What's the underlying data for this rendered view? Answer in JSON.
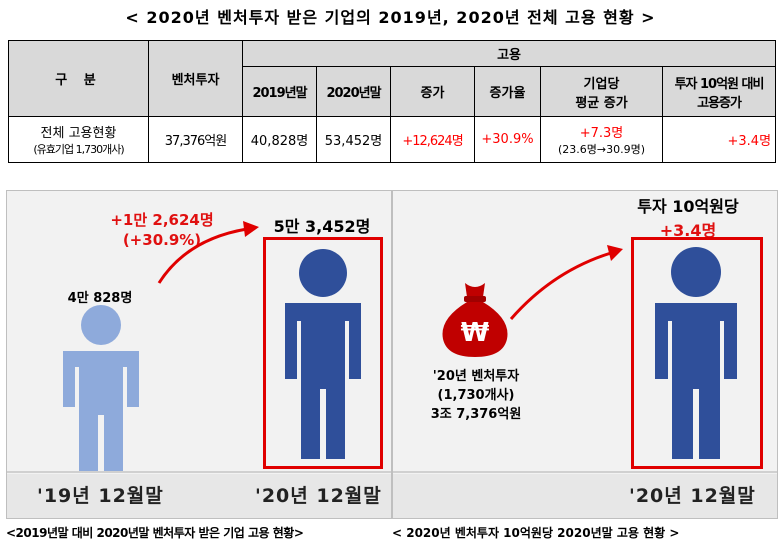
{
  "title": "< 2020년 벤처투자 받은 기업의 2019년, 2020년 전체 고용 현황 >",
  "table": {
    "h_gubun": "구  분",
    "h_invest": "벤처투자",
    "h_employment": "고용",
    "h_2019": "2019년말",
    "h_2020": "2020년말",
    "h_increase": "증가",
    "h_rate": "증가율",
    "h_avg_line1": "기업당",
    "h_avg_line2": "평균 증가",
    "h_per_line1": "투자 10억원 대비",
    "h_per_line2": "고용증가",
    "row_label_line1": "전체 고용현황",
    "row_label_line2": "(유효기업 1,730개사)",
    "invest": "37,376억원",
    "emp2019": "40,828명",
    "emp2020": "53,452명",
    "increase": "+12,624명",
    "rate": "+30.9%",
    "avg_line1": "+7.3명",
    "avg_line2": "(23.6명→30.9명)",
    "per": "+3.4명"
  },
  "left_panel": {
    "increase_line1": "+1만 2,624명",
    "increase_line2": "(+30.9%)",
    "count_2019": "4만 828명",
    "count_2020": "5만 3,452명",
    "year_2019": "'19년 12월말",
    "year_2020": "'20년 12월말",
    "caption": "<2019년말 대비 2020년말 벤처투자 받은 기업 고용 현황>"
  },
  "right_panel": {
    "per_title": "투자 10억원당",
    "per_value": "+3.4명",
    "invest_line1": "'20년 벤처투자",
    "invest_line2": "(1,730개사)",
    "invest_line3": "3조 7,376억원",
    "year": "'20년 12월말",
    "caption": "< 2020년 벤처투자 10억원당 2020년말 고용 현황 >",
    "bag_symbol": "₩"
  },
  "colors": {
    "light_person": "#8eaadb",
    "dark_person": "#2f4f9a",
    "accent_red": "#e00000",
    "bag_red": "#c00000"
  },
  "icons": [
    "person-icon",
    "money-bag-icon",
    "arrow-icon"
  ]
}
